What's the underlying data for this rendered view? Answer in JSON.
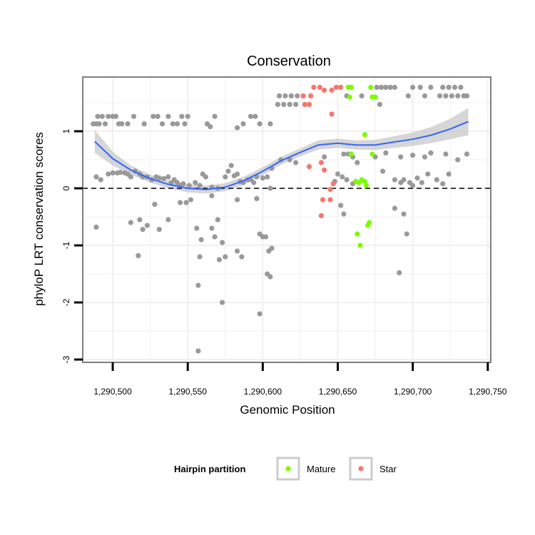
{
  "chart_data": {
    "type": "scatter",
    "title": "Conservation",
    "xlabel": "Genomic Position",
    "ylabel": "phyloP LRT conservation scores",
    "xlim": [
      1290480,
      1290752
    ],
    "ylim": [
      -3.05,
      1.95
    ],
    "x_ticks": [
      1290500,
      1290550,
      1290600,
      1290650,
      1290700,
      1290750
    ],
    "x_tick_labels": [
      "1,290,500",
      "1,290,550",
      "1,290,600",
      "1,290,650",
      "1,290,700",
      "1,290,750"
    ],
    "y_ticks": [
      -3,
      -2,
      -1,
      0,
      1
    ],
    "y_tick_labels": [
      "-3",
      "-2",
      "-1",
      "0",
      "1"
    ],
    "grid": true,
    "reference_line": {
      "y": 0,
      "style": "dashed",
      "color": "#000000"
    },
    "colors": {
      "other": "#999999",
      "Mature": "#7CFC00",
      "Star": "#F8766D",
      "smooth": "#3366FF",
      "band": "#cccccc",
      "grid": "#f0f0f0",
      "border": "#7f7f7f"
    },
    "legend": {
      "title": "Hairpin partition",
      "position": "bottom",
      "entries": [
        {
          "label": "Mature",
          "color": "#7CFC00"
        },
        {
          "label": "Star",
          "color": "#F8766D"
        }
      ]
    },
    "smooth": {
      "x": [
        1290488,
        1290500,
        1290512,
        1290525,
        1290537,
        1290550,
        1290562,
        1290575,
        1290587,
        1290600,
        1290612,
        1290625,
        1290637,
        1290650,
        1290662,
        1290675,
        1290687,
        1290700,
        1290712,
        1290725,
        1290737
      ],
      "y": [
        0.82,
        0.52,
        0.32,
        0.17,
        0.07,
        0.0,
        -0.02,
        0.02,
        0.13,
        0.3,
        0.48,
        0.63,
        0.76,
        0.79,
        0.76,
        0.76,
        0.81,
        0.86,
        0.93,
        1.04,
        1.17
      ],
      "lower": [
        0.62,
        0.4,
        0.24,
        0.1,
        0.0,
        -0.07,
        -0.09,
        -0.05,
        0.06,
        0.23,
        0.41,
        0.56,
        0.68,
        0.71,
        0.68,
        0.67,
        0.71,
        0.74,
        0.79,
        0.86,
        0.93
      ],
      "upper": [
        1.02,
        0.64,
        0.4,
        0.24,
        0.14,
        0.07,
        0.05,
        0.09,
        0.2,
        0.37,
        0.55,
        0.7,
        0.84,
        0.87,
        0.84,
        0.85,
        0.91,
        0.98,
        1.07,
        1.22,
        1.41
      ]
    },
    "series": [
      {
        "name": "Mature",
        "points": [
          [
            1290657,
            1.77
          ],
          [
            1290659,
            1.77
          ],
          [
            1290658,
            1.6
          ],
          [
            1290672,
            1.77
          ],
          [
            1290673,
            1.6
          ],
          [
            1290675,
            1.6
          ],
          [
            1290668,
            0.94
          ],
          [
            1290659,
            0.6
          ],
          [
            1290673,
            0.6
          ],
          [
            1290662,
            0.12
          ],
          [
            1290664,
            0.1
          ],
          [
            1290666,
            0.15
          ],
          [
            1290668,
            0.12
          ],
          [
            1290669,
            0.05
          ],
          [
            1290671,
            -0.6
          ],
          [
            1290670,
            -0.65
          ],
          [
            1290663,
            -0.8
          ],
          [
            1290665,
            -1.0
          ]
        ]
      },
      {
        "name": "Star",
        "points": [
          [
            1290634,
            1.77
          ],
          [
            1290638,
            1.77
          ],
          [
            1290641,
            1.72
          ],
          [
            1290646,
            1.72
          ],
          [
            1290649,
            1.77
          ],
          [
            1290652,
            1.77
          ],
          [
            1290627,
            1.62
          ],
          [
            1290632,
            1.62
          ],
          [
            1290628,
            1.47
          ],
          [
            1290631,
            1.47
          ],
          [
            1290646,
            1.3
          ],
          [
            1290631,
            0.38
          ],
          [
            1290639,
            0.45
          ],
          [
            1290641,
            0.32
          ],
          [
            1290645,
            -0.02
          ],
          [
            1290647,
            0.08
          ],
          [
            1290640,
            -0.2
          ],
          [
            1290645,
            -0.2
          ],
          [
            1290639,
            -0.48
          ]
        ]
      },
      {
        "name": "",
        "points": [
          [
            1290487,
            1.13
          ],
          [
            1290489,
            1.13
          ],
          [
            1290490,
            1.26
          ],
          [
            1290491,
            1.13
          ],
          [
            1290493,
            1.26
          ],
          [
            1290495,
            1.13
          ],
          [
            1290497,
            1.26
          ],
          [
            1290500,
            1.26
          ],
          [
            1290502,
            1.26
          ],
          [
            1290504,
            1.13
          ],
          [
            1290506,
            1.13
          ],
          [
            1290510,
            1.13
          ],
          [
            1290514,
            1.26
          ],
          [
            1290521,
            1.13
          ],
          [
            1290527,
            1.26
          ],
          [
            1290530,
            1.26
          ],
          [
            1290533,
            1.13
          ],
          [
            1290537,
            1.26
          ],
          [
            1290540,
            1.13
          ],
          [
            1290543,
            1.13
          ],
          [
            1290546,
            1.26
          ],
          [
            1290548,
            1.13
          ],
          [
            1290550,
            1.26
          ],
          [
            1290563,
            1.13
          ],
          [
            1290565,
            1.08
          ],
          [
            1290568,
            1.26
          ],
          [
            1290583,
            1.06
          ],
          [
            1290587,
            1.13
          ],
          [
            1290592,
            1.26
          ],
          [
            1290595,
            1.26
          ],
          [
            1290598,
            1.13
          ],
          [
            1290605,
            1.13
          ],
          [
            1290610,
            1.47
          ],
          [
            1290614,
            1.47
          ],
          [
            1290618,
            1.47
          ],
          [
            1290622,
            1.47
          ],
          [
            1290611,
            1.62
          ],
          [
            1290615,
            1.62
          ],
          [
            1290619,
            1.62
          ],
          [
            1290623,
            1.62
          ],
          [
            1290656,
            1.62
          ],
          [
            1290666,
            1.62
          ],
          [
            1290678,
            1.47
          ],
          [
            1290676,
            1.77
          ],
          [
            1290679,
            1.77
          ],
          [
            1290682,
            1.77
          ],
          [
            1290685,
            1.77
          ],
          [
            1290688,
            1.77
          ],
          [
            1290697,
            1.62
          ],
          [
            1290700,
            1.77
          ],
          [
            1290705,
            1.77
          ],
          [
            1290708,
            1.62
          ],
          [
            1290712,
            1.77
          ],
          [
            1290718,
            1.62
          ],
          [
            1290720,
            1.77
          ],
          [
            1290722,
            1.62
          ],
          [
            1290724,
            1.77
          ],
          [
            1290726,
            1.62
          ],
          [
            1290728,
            1.77
          ],
          [
            1290730,
            1.62
          ],
          [
            1290732,
            1.77
          ],
          [
            1290734,
            1.62
          ],
          [
            1290736,
            1.62
          ],
          [
            1290489,
            0.2
          ],
          [
            1290492,
            0.15
          ],
          [
            1290497,
            0.25
          ],
          [
            1290500,
            0.27
          ],
          [
            1290503,
            0.27
          ],
          [
            1290505,
            0.28
          ],
          [
            1290508,
            0.27
          ],
          [
            1290510,
            0.25
          ],
          [
            1290512,
            0.2
          ],
          [
            1290515,
            0.3
          ],
          [
            1290518,
            0.25
          ],
          [
            1290520,
            0.2
          ],
          [
            1290523,
            0.2
          ],
          [
            1290526,
            0.15
          ],
          [
            1290529,
            0.2
          ],
          [
            1290531,
            0.18
          ],
          [
            1290534,
            0.17
          ],
          [
            1290537,
            0.2
          ],
          [
            1290539,
            0.1
          ],
          [
            1290541,
            0.15
          ],
          [
            1290543,
            0.1
          ],
          [
            1290545,
            0.05
          ],
          [
            1290547,
            0.08
          ],
          [
            1290551,
            0.05
          ],
          [
            1290555,
            0.1
          ],
          [
            1290558,
            0.05
          ],
          [
            1290560,
            0.25
          ],
          [
            1290562,
            0.2
          ],
          [
            1290566,
            0.02
          ],
          [
            1290570,
            0.0
          ],
          [
            1290575,
            0.2
          ],
          [
            1290577,
            0.3
          ],
          [
            1290579,
            0.4
          ],
          [
            1290581,
            0.22
          ],
          [
            1290583,
            0.25
          ],
          [
            1290585,
            0.12
          ],
          [
            1290587,
            0.1
          ],
          [
            1290590,
            0.15
          ],
          [
            1290592,
            0.15
          ],
          [
            1290594,
            0.1
          ],
          [
            1290596,
            0.2
          ],
          [
            1290600,
            0.18
          ],
          [
            1290603,
            0.2
          ],
          [
            1290606,
            0.35
          ],
          [
            1290612,
            0.5
          ],
          [
            1290618,
            0.5
          ],
          [
            1290622,
            0.45
          ],
          [
            1290641,
            0.55
          ],
          [
            1290654,
            0.6
          ],
          [
            1290657,
            0.6
          ],
          [
            1290660,
            0.55
          ],
          [
            1290663,
            0.45
          ],
          [
            1290650,
            0.25
          ],
          [
            1290653,
            0.2
          ],
          [
            1290656,
            0.15
          ],
          [
            1290660,
            0.08
          ],
          [
            1290648,
            0.12
          ],
          [
            1290675,
            0.55
          ],
          [
            1290682,
            0.62
          ],
          [
            1290692,
            0.55
          ],
          [
            1290700,
            0.58
          ],
          [
            1290708,
            0.55
          ],
          [
            1290712,
            0.62
          ],
          [
            1290722,
            0.6
          ],
          [
            1290730,
            0.5
          ],
          [
            1290736,
            0.6
          ],
          [
            1290680,
            0.3
          ],
          [
            1290688,
            0.15
          ],
          [
            1290692,
            0.1
          ],
          [
            1290694,
            0.15
          ],
          [
            1290698,
            0.1
          ],
          [
            1290700,
            0.05
          ],
          [
            1290703,
            0.18
          ],
          [
            1290706,
            0.1
          ],
          [
            1290710,
            0.25
          ],
          [
            1290716,
            0.15
          ],
          [
            1290720,
            0.08
          ],
          [
            1290724,
            0.25
          ],
          [
            1290528,
            -0.28
          ],
          [
            1290545,
            -0.25
          ],
          [
            1290549,
            -0.25
          ],
          [
            1290552,
            -0.2
          ],
          [
            1290566,
            -0.13
          ],
          [
            1290583,
            -0.2
          ],
          [
            1290596,
            -0.18
          ],
          [
            1290605,
            0.0
          ],
          [
            1290489,
            -0.68
          ],
          [
            1290512,
            -0.6
          ],
          [
            1290518,
            -0.55
          ],
          [
            1290520,
            -0.72
          ],
          [
            1290523,
            -0.65
          ],
          [
            1290531,
            -0.72
          ],
          [
            1290537,
            -0.55
          ],
          [
            1290556,
            -0.7
          ],
          [
            1290559,
            -0.9
          ],
          [
            1290566,
            -0.7
          ],
          [
            1290570,
            -0.55
          ],
          [
            1290573,
            -0.95
          ],
          [
            1290568,
            -0.85
          ],
          [
            1290598,
            -0.8
          ],
          [
            1290600,
            -0.85
          ],
          [
            1290602,
            -0.85
          ],
          [
            1290604,
            -1.1
          ],
          [
            1290606,
            -1.05
          ],
          [
            1290517,
            -1.18
          ],
          [
            1290558,
            -1.2
          ],
          [
            1290571,
            -1.25
          ],
          [
            1290575,
            -1.2
          ],
          [
            1290583,
            -1.1
          ],
          [
            1290586,
            -1.2
          ],
          [
            1290603,
            -1.5
          ],
          [
            1290605,
            -1.55
          ],
          [
            1290557,
            -1.7
          ],
          [
            1290573,
            -2.0
          ],
          [
            1290598,
            -2.2
          ],
          [
            1290557,
            -2.85
          ],
          [
            1290688,
            -0.35
          ],
          [
            1290694,
            -0.45
          ],
          [
            1290696,
            -0.8
          ],
          [
            1290691,
            -1.48
          ],
          [
            1290652,
            -0.3
          ],
          [
            1290654,
            -0.45
          ]
        ]
      }
    ]
  }
}
